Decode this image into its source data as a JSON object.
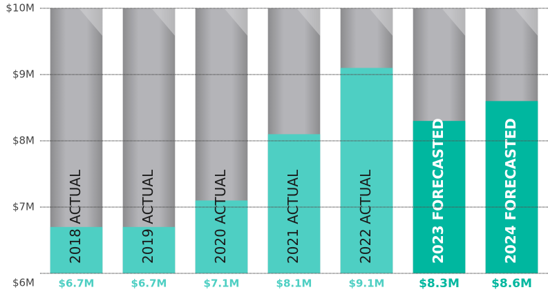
{
  "chart_data": {
    "type": "bar",
    "categories": [
      "2018 ACTUAL",
      "2019 ACTUAL",
      "2020 ACTUAL",
      "2021 ACTUAL",
      "2022 ACTUAL",
      "2023 FORECASTED",
      "2024 FORECASTED"
    ],
    "values": [
      6.7,
      6.7,
      7.1,
      8.1,
      9.1,
      8.3,
      8.6
    ],
    "value_labels": [
      "$6.7M",
      "$6.7M",
      "$7.1M",
      "$8.1M",
      "$9.1M",
      "$8.3M",
      "$8.6M"
    ],
    "colors": [
      "#4ecfc3",
      "#4ecfc3",
      "#4ecfc3",
      "#4ecfc3",
      "#4ecfc3",
      "#00b79f",
      "#00b79f"
    ],
    "label_colors": [
      "#1a1a1a",
      "#1a1a1a",
      "#1a1a1a",
      "#1a1a1a",
      "#1a1a1a",
      "#ffffff",
      "#ffffff"
    ],
    "ylim": [
      6,
      10
    ],
    "yticks": [
      {
        "value": 6,
        "label": "$6M"
      },
      {
        "value": 7,
        "label": "$7M"
      },
      {
        "value": 8,
        "label": "$8M"
      },
      {
        "value": 9,
        "label": "$9M"
      },
      {
        "value": 10,
        "label": "$10M"
      }
    ],
    "grid": true
  }
}
